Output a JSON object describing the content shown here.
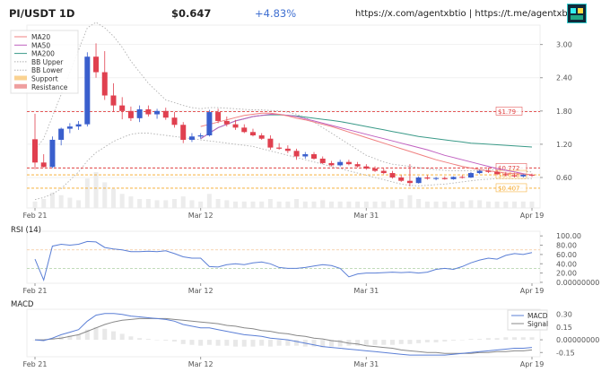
{
  "header": {
    "title": "PI/USDT 1D",
    "price": "$0.647",
    "change": "+4.83%",
    "links": "https://x.com/agentxbtio | https://t.me/agentxbt",
    "logo_icon": "pixel-robot-icon"
  },
  "colors": {
    "up": "#3a5fcd",
    "down": "#e0404f",
    "ma20": "#f08080",
    "ma50": "#c060c0",
    "ma200": "#3a9a88",
    "bb": "#b0b0b0",
    "support": "#f5a623",
    "resistance": "#e04040",
    "macd": "#5b7fd6",
    "signal": "#888888",
    "rsi": "#5b7fd6"
  },
  "chart_data": [
    {
      "type": "candlestick",
      "title": "",
      "legend_position": "top-left",
      "legend": [
        "MA20",
        "MA50",
        "MA200",
        "BB Upper",
        "BB Lower",
        "Support",
        "Resistance"
      ],
      "x_ticks": [
        {
          "i": 0,
          "label": "Feb 21"
        },
        {
          "i": 19,
          "label": "Mar 12"
        },
        {
          "i": 38,
          "label": "Mar 31"
        },
        {
          "i": 57,
          "label": "Apr 19"
        }
      ],
      "y_ticks": [
        0.6,
        1.2,
        1.8,
        2.4,
        3.0
      ],
      "ylim": [
        0.05,
        3.35
      ],
      "candles": [
        {
          "o": 1.29,
          "h": 1.75,
          "l": 0.75,
          "c": 0.87
        },
        {
          "o": 0.87,
          "h": 1.02,
          "l": 0.78,
          "c": 0.79
        },
        {
          "o": 0.79,
          "h": 1.34,
          "l": 0.77,
          "c": 1.28
        },
        {
          "o": 1.28,
          "h": 1.5,
          "l": 1.18,
          "c": 1.48
        },
        {
          "o": 1.48,
          "h": 1.58,
          "l": 1.4,
          "c": 1.52
        },
        {
          "o": 1.52,
          "h": 1.62,
          "l": 1.46,
          "c": 1.56
        },
        {
          "o": 1.56,
          "h": 2.86,
          "l": 1.52,
          "c": 2.78
        },
        {
          "o": 2.78,
          "h": 3.02,
          "l": 2.4,
          "c": 2.5
        },
        {
          "o": 2.5,
          "h": 2.88,
          "l": 2.0,
          "c": 2.08
        },
        {
          "o": 2.08,
          "h": 2.3,
          "l": 1.78,
          "c": 1.9
        },
        {
          "o": 1.9,
          "h": 2.05,
          "l": 1.65,
          "c": 1.8
        },
        {
          "o": 1.8,
          "h": 1.88,
          "l": 1.62,
          "c": 1.67
        },
        {
          "o": 1.67,
          "h": 1.9,
          "l": 1.6,
          "c": 1.83
        },
        {
          "o": 1.83,
          "h": 1.9,
          "l": 1.7,
          "c": 1.74
        },
        {
          "o": 1.74,
          "h": 1.84,
          "l": 1.66,
          "c": 1.8
        },
        {
          "o": 1.8,
          "h": 1.86,
          "l": 1.64,
          "c": 1.68
        },
        {
          "o": 1.68,
          "h": 1.78,
          "l": 1.5,
          "c": 1.55
        },
        {
          "o": 1.55,
          "h": 1.6,
          "l": 1.22,
          "c": 1.28
        },
        {
          "o": 1.28,
          "h": 1.4,
          "l": 1.24,
          "c": 1.34
        },
        {
          "o": 1.34,
          "h": 1.4,
          "l": 1.3,
          "c": 1.36
        },
        {
          "o": 1.36,
          "h": 1.82,
          "l": 1.34,
          "c": 1.78
        },
        {
          "o": 1.78,
          "h": 1.84,
          "l": 1.58,
          "c": 1.62
        },
        {
          "o": 1.62,
          "h": 1.7,
          "l": 1.52,
          "c": 1.56
        },
        {
          "o": 1.56,
          "h": 1.64,
          "l": 1.46,
          "c": 1.5
        },
        {
          "o": 1.5,
          "h": 1.56,
          "l": 1.4,
          "c": 1.42
        },
        {
          "o": 1.42,
          "h": 1.48,
          "l": 1.34,
          "c": 1.36
        },
        {
          "o": 1.36,
          "h": 1.4,
          "l": 1.28,
          "c": 1.3
        },
        {
          "o": 1.3,
          "h": 1.36,
          "l": 1.1,
          "c": 1.14
        },
        {
          "o": 1.14,
          "h": 1.22,
          "l": 1.1,
          "c": 1.12
        },
        {
          "o": 1.12,
          "h": 1.18,
          "l": 1.04,
          "c": 1.08
        },
        {
          "o": 1.08,
          "h": 1.12,
          "l": 0.92,
          "c": 0.98
        },
        {
          "o": 0.98,
          "h": 1.06,
          "l": 0.94,
          "c": 1.02
        },
        {
          "o": 1.02,
          "h": 1.06,
          "l": 0.92,
          "c": 0.94
        },
        {
          "o": 0.94,
          "h": 0.98,
          "l": 0.84,
          "c": 0.86
        },
        {
          "o": 0.86,
          "h": 0.9,
          "l": 0.8,
          "c": 0.82
        },
        {
          "o": 0.82,
          "h": 0.92,
          "l": 0.8,
          "c": 0.88
        },
        {
          "o": 0.88,
          "h": 0.92,
          "l": 0.82,
          "c": 0.84
        },
        {
          "o": 0.84,
          "h": 0.88,
          "l": 0.78,
          "c": 0.8
        },
        {
          "o": 0.8,
          "h": 0.84,
          "l": 0.74,
          "c": 0.76
        },
        {
          "o": 0.76,
          "h": 0.8,
          "l": 0.7,
          "c": 0.72
        },
        {
          "o": 0.72,
          "h": 0.76,
          "l": 0.66,
          "c": 0.68
        },
        {
          "o": 0.68,
          "h": 0.72,
          "l": 0.58,
          "c": 0.6
        },
        {
          "o": 0.6,
          "h": 0.64,
          "l": 0.52,
          "c": 0.54
        },
        {
          "o": 0.54,
          "h": 0.84,
          "l": 0.44,
          "c": 0.5
        },
        {
          "o": 0.5,
          "h": 0.62,
          "l": 0.49,
          "c": 0.6
        },
        {
          "o": 0.6,
          "h": 0.64,
          "l": 0.56,
          "c": 0.58
        },
        {
          "o": 0.58,
          "h": 0.61,
          "l": 0.55,
          "c": 0.59
        },
        {
          "o": 0.59,
          "h": 0.62,
          "l": 0.56,
          "c": 0.57
        },
        {
          "o": 0.57,
          "h": 0.62,
          "l": 0.56,
          "c": 0.61
        },
        {
          "o": 0.61,
          "h": 0.64,
          "l": 0.58,
          "c": 0.6
        },
        {
          "o": 0.6,
          "h": 0.7,
          "l": 0.59,
          "c": 0.68
        },
        {
          "o": 0.68,
          "h": 0.74,
          "l": 0.66,
          "c": 0.72
        },
        {
          "o": 0.72,
          "h": 0.78,
          "l": 0.68,
          "c": 0.7
        },
        {
          "o": 0.7,
          "h": 0.74,
          "l": 0.64,
          "c": 0.66
        },
        {
          "o": 0.66,
          "h": 0.7,
          "l": 0.62,
          "c": 0.64
        },
        {
          "o": 0.64,
          "h": 0.67,
          "l": 0.6,
          "c": 0.62
        },
        {
          "o": 0.62,
          "h": 0.66,
          "l": 0.6,
          "c": 0.65
        },
        {
          "o": 0.65,
          "h": 0.67,
          "l": 0.61,
          "c": 0.647
        }
      ],
      "volume": [
        0.1,
        0.14,
        0.24,
        0.2,
        0.16,
        0.12,
        0.46,
        0.56,
        0.4,
        0.3,
        0.22,
        0.18,
        0.14,
        0.14,
        0.12,
        0.12,
        0.14,
        0.18,
        0.12,
        0.1,
        0.22,
        0.14,
        0.12,
        0.1,
        0.1,
        0.1,
        0.1,
        0.14,
        0.1,
        0.1,
        0.14,
        0.1,
        0.1,
        0.12,
        0.1,
        0.1,
        0.1,
        0.1,
        0.1,
        0.1,
        0.1,
        0.12,
        0.14,
        0.2,
        0.14,
        0.1,
        0.1,
        0.1,
        0.1,
        0.1,
        0.12,
        0.12,
        0.1,
        0.1,
        0.1,
        0.1,
        0.1,
        0.1
      ],
      "ma20": [
        null,
        null,
        null,
        null,
        null,
        null,
        null,
        null,
        null,
        null,
        null,
        null,
        null,
        null,
        null,
        null,
        null,
        null,
        null,
        1.52,
        1.56,
        1.6,
        1.64,
        1.68,
        1.72,
        1.74,
        1.76,
        1.76,
        1.74,
        1.71,
        1.67,
        1.64,
        1.6,
        1.56,
        1.52,
        1.47,
        1.42,
        1.37,
        1.32,
        1.27,
        1.22,
        1.17,
        1.12,
        1.07,
        1.02,
        0.97,
        0.92,
        0.88,
        0.84,
        0.8,
        0.77,
        0.74,
        0.72,
        0.7,
        0.68,
        0.67,
        0.66,
        0.65
      ],
      "ma50": [
        null,
        null,
        null,
        null,
        null,
        null,
        null,
        null,
        null,
        null,
        null,
        null,
        null,
        null,
        null,
        null,
        null,
        null,
        null,
        1.3,
        1.4,
        1.5,
        1.56,
        1.62,
        1.66,
        1.7,
        1.72,
        1.74,
        1.74,
        1.72,
        1.7,
        1.66,
        1.62,
        1.58,
        1.54,
        1.5,
        1.46,
        1.42,
        1.38,
        1.34,
        1.3,
        1.26,
        1.22,
        1.18,
        1.14,
        1.1,
        1.05,
        1.0,
        0.96,
        0.92,
        0.88,
        0.84,
        0.8,
        0.76,
        0.73,
        0.7,
        0.67,
        0.64
      ],
      "ma200": [
        null,
        null,
        null,
        null,
        null,
        null,
        null,
        null,
        null,
        null,
        null,
        null,
        null,
        null,
        null,
        null,
        null,
        null,
        null,
        1.3,
        1.4,
        1.5,
        1.56,
        1.62,
        1.66,
        1.7,
        1.72,
        1.73,
        1.73,
        1.72,
        1.71,
        1.69,
        1.67,
        1.65,
        1.63,
        1.61,
        1.58,
        1.55,
        1.52,
        1.49,
        1.46,
        1.43,
        1.4,
        1.37,
        1.34,
        1.32,
        1.3,
        1.28,
        1.26,
        1.24,
        1.22,
        1.21,
        1.2,
        1.19,
        1.18,
        1.17,
        1.16,
        1.15
      ],
      "bb_upper": [
        1.1,
        1.3,
        1.7,
        2.1,
        2.5,
        2.9,
        3.3,
        3.4,
        3.3,
        3.15,
        2.95,
        2.7,
        2.5,
        2.3,
        2.15,
        2.0,
        1.95,
        1.9,
        1.86,
        1.84,
        1.86,
        1.86,
        1.85,
        1.84,
        1.83,
        1.82,
        1.82,
        1.81,
        1.8,
        1.78,
        1.74,
        1.68,
        1.6,
        1.5,
        1.4,
        1.3,
        1.2,
        1.1,
        1.0,
        0.94,
        0.88,
        0.84,
        0.82,
        0.8,
        0.78,
        0.76,
        0.74,
        0.73,
        0.72,
        0.72,
        0.72,
        0.73,
        0.74,
        0.74,
        0.73,
        0.72,
        0.71,
        0.7
      ],
      "bb_lower": [
        0.2,
        0.24,
        0.3,
        0.4,
        0.55,
        0.7,
        0.9,
        1.05,
        1.15,
        1.25,
        1.32,
        1.38,
        1.4,
        1.4,
        1.38,
        1.36,
        1.34,
        1.32,
        1.3,
        1.28,
        1.26,
        1.24,
        1.22,
        1.2,
        1.18,
        1.16,
        1.12,
        1.08,
        1.04,
        1.0,
        0.96,
        0.92,
        0.88,
        0.84,
        0.8,
        0.76,
        0.72,
        0.68,
        0.64,
        0.6,
        0.56,
        0.52,
        0.48,
        0.46,
        0.45,
        0.46,
        0.47,
        0.48,
        0.5,
        0.52,
        0.54,
        0.56,
        0.57,
        0.58,
        0.58,
        0.58,
        0.58,
        0.58
      ],
      "support": [
        {
          "value": 0.648,
          "label": "$0.648"
        },
        {
          "value": 0.407,
          "label": "$0.407"
        }
      ],
      "resistance": [
        {
          "value": 1.79,
          "label": "$1.79"
        },
        {
          "value": 0.772,
          "label": "$0.772"
        }
      ]
    },
    {
      "type": "line",
      "title": "RSI (14)",
      "ylim": [
        -2,
        110
      ],
      "y_ticks": [
        {
          "v": 100,
          "label": "100.00"
        },
        {
          "v": 80,
          "label": "80.00"
        },
        {
          "v": 60,
          "label": "60.00"
        },
        {
          "v": 40,
          "label": "40.00"
        },
        {
          "v": 20,
          "label": "20.00"
        },
        {
          "v": 0,
          "label": "0.00000000"
        }
      ],
      "levels": [
        70,
        30
      ],
      "series": [
        {
          "values": [
            50,
            5,
            78,
            82,
            80,
            82,
            88,
            87,
            75,
            72,
            70,
            66,
            66,
            67,
            66,
            68,
            62,
            55,
            52,
            52,
            34,
            33,
            38,
            40,
            38,
            42,
            44,
            40,
            32,
            30,
            30,
            32,
            35,
            38,
            36,
            30,
            12,
            18,
            20,
            20,
            21,
            22,
            21,
            22,
            20,
            22,
            28,
            30,
            28,
            34,
            42,
            48,
            52,
            50,
            58,
            62,
            60,
            64
          ]
        }
      ]
    },
    {
      "type": "line",
      "title": "MACD",
      "ylim": [
        -0.2,
        0.36
      ],
      "y_ticks": [
        {
          "v": 0.3,
          "label": "0.30"
        },
        {
          "v": 0.15,
          "label": "0.15"
        },
        {
          "v": 0.0,
          "label": "0.00000000"
        },
        {
          "v": -0.15,
          "label": "-0.15"
        }
      ],
      "legend": [
        "MACD",
        "Signal"
      ],
      "legend_position": "top-right",
      "series": [
        {
          "name": "MACD",
          "values": [
            0.0,
            -0.01,
            0.02,
            0.06,
            0.09,
            0.12,
            0.22,
            0.29,
            0.31,
            0.31,
            0.3,
            0.28,
            0.27,
            0.26,
            0.25,
            0.24,
            0.22,
            0.18,
            0.16,
            0.14,
            0.14,
            0.12,
            0.1,
            0.08,
            0.06,
            0.05,
            0.04,
            0.02,
            0.01,
            0.0,
            -0.02,
            -0.04,
            -0.06,
            -0.08,
            -0.09,
            -0.1,
            -0.11,
            -0.12,
            -0.13,
            -0.14,
            -0.15,
            -0.16,
            -0.17,
            -0.18,
            -0.18,
            -0.18,
            -0.18,
            -0.18,
            -0.17,
            -0.16,
            -0.15,
            -0.14,
            -0.13,
            -0.12,
            -0.11,
            -0.1,
            -0.1,
            -0.09
          ]
        },
        {
          "name": "Signal",
          "values": [
            0.0,
            0.0,
            0.01,
            0.02,
            0.04,
            0.06,
            0.1,
            0.14,
            0.18,
            0.21,
            0.23,
            0.24,
            0.25,
            0.25,
            0.25,
            0.25,
            0.24,
            0.23,
            0.22,
            0.21,
            0.2,
            0.19,
            0.17,
            0.16,
            0.14,
            0.13,
            0.11,
            0.1,
            0.08,
            0.07,
            0.05,
            0.04,
            0.02,
            0.01,
            -0.01,
            -0.02,
            -0.04,
            -0.05,
            -0.07,
            -0.08,
            -0.09,
            -0.1,
            -0.12,
            -0.13,
            -0.14,
            -0.15,
            -0.15,
            -0.16,
            -0.16,
            -0.16,
            -0.16,
            -0.15,
            -0.15,
            -0.14,
            -0.14,
            -0.13,
            -0.13,
            -0.12
          ]
        }
      ]
    }
  ]
}
